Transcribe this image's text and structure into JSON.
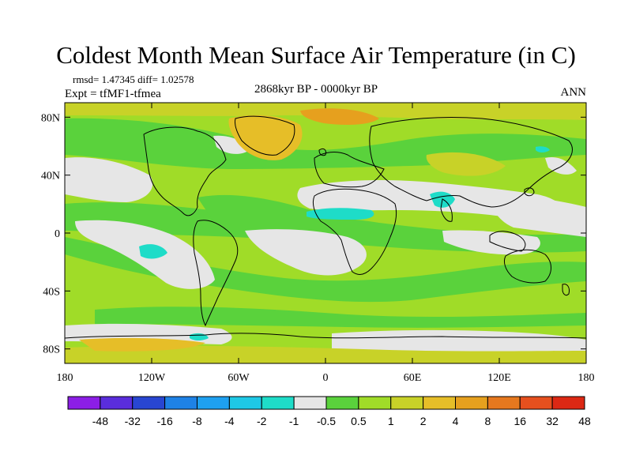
{
  "title": "Coldest Month Mean Surface Air Temperature (in C)",
  "stats_text": "rmsd= 1.47345 diff= 1.02578",
  "experiment_text": "Expt = tfMF1-tfmea",
  "period_text": "2868kyr BP - 0000kyr BP",
  "season_text": "ANN",
  "axes": {
    "lat_labels": [
      {
        "text": "80N",
        "lat": 80
      },
      {
        "text": "40N",
        "lat": 40
      },
      {
        "text": "0",
        "lat": 0
      },
      {
        "text": "40S",
        "lat": -40
      },
      {
        "text": "80S",
        "lat": -80
      }
    ],
    "lon_labels": [
      {
        "text": "180",
        "lon": -180
      },
      {
        "text": "120W",
        "lon": -120
      },
      {
        "text": "60W",
        "lon": -60
      },
      {
        "text": "0",
        "lon": 0
      },
      {
        "text": "60E",
        "lon": 60
      },
      {
        "text": "120E",
        "lon": 120
      },
      {
        "text": "180",
        "lon": 180
      }
    ],
    "lon_range": [
      -180,
      180
    ],
    "lat_range": [
      -90,
      90
    ]
  },
  "colorbar": {
    "colors": [
      "#8c1ee6",
      "#5a2ddc",
      "#2846d2",
      "#1e82e6",
      "#1ea0f0",
      "#1ec8e6",
      "#1edcc8",
      "#e6e6e6",
      "#5ad23c",
      "#a0dc28",
      "#c8d228",
      "#e6be28",
      "#e6a01e",
      "#e6781e",
      "#e6501e",
      "#dc2814"
    ],
    "labels": [
      "-48",
      "-32",
      "-16",
      "-8",
      "-4",
      "-2",
      "-1",
      "-0.5",
      "0.5",
      "1",
      "2",
      "4",
      "8",
      "16",
      "32",
      "48"
    ]
  }
}
